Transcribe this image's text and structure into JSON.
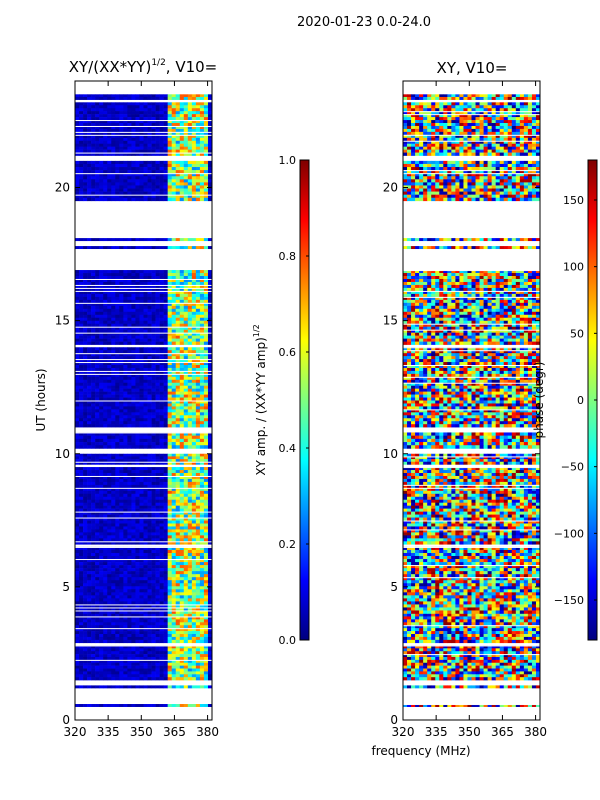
{
  "figure": {
    "suptitle": "2020-01-23 0.0-24.0",
    "xlabel": "frequency (MHz)"
  },
  "colors": {
    "cmap": [
      "#00007f",
      "#0000ff",
      "#007fff",
      "#00ffff",
      "#7fff7f",
      "#ffff00",
      "#ff7f00",
      "#ff0000",
      "#7f0000"
    ],
    "background": "#ffffff",
    "axis": "#000000"
  },
  "chart_data": [
    {
      "type": "heatmap",
      "title_main": "XY/(XX*YY)",
      "title_sup": "1/2",
      "title_tail": ", V10=",
      "ylabel": "UT (hours)",
      "xlim": [
        320,
        382
      ],
      "ylim": [
        0,
        24
      ],
      "xticks": [
        320,
        335,
        350,
        365,
        380
      ],
      "yticks": [
        0,
        5,
        10,
        15,
        20
      ],
      "x_tick_labels": [
        "320",
        "335",
        "350",
        "365",
        "380"
      ],
      "y_tick_labels": [
        "0",
        "5",
        "10",
        "15",
        "20"
      ],
      "colorbar": {
        "label_main": "XY amp. / (XX*YY amp)",
        "label_sup": "1/2",
        "range": [
          0.0,
          1.0
        ],
        "ticks": [
          0.0,
          0.2,
          0.4,
          0.6,
          0.8,
          1.0
        ],
        "tick_labels": [
          "0.0",
          "0.2",
          "0.4",
          "0.6",
          "0.8",
          "1.0"
        ]
      },
      "data_ranges_hours": [
        [
          0.5,
          0.6
        ],
        [
          1.2,
          1.3
        ],
        [
          1.5,
          2.8
        ],
        [
          2.9,
          4.0
        ],
        [
          4.0,
          6.5
        ],
        [
          6.6,
          9.5
        ],
        [
          9.6,
          10.0
        ],
        [
          10.2,
          10.8
        ],
        [
          11.0,
          14.0
        ],
        [
          14.1,
          16.9
        ],
        [
          17.7,
          17.8
        ],
        [
          18.0,
          18.1
        ],
        [
          19.5,
          21.0
        ],
        [
          21.2,
          23.2
        ],
        [
          23.3,
          23.5
        ]
      ]
    },
    {
      "type": "heatmap",
      "title": "XY, V10=",
      "xlim": [
        320,
        382
      ],
      "ylim": [
        0,
        24
      ],
      "xticks": [
        320,
        335,
        350,
        365,
        380
      ],
      "yticks": [
        0,
        5,
        10,
        15,
        20
      ],
      "x_tick_labels": [
        "320",
        "335",
        "350",
        "365",
        "380"
      ],
      "y_tick_labels": [
        "0",
        "5",
        "10",
        "15",
        "20"
      ],
      "colorbar": {
        "label": "phase (degr)",
        "range": [
          -180,
          180
        ],
        "ticks": [
          -150,
          -100,
          -50,
          0,
          50,
          100,
          150
        ],
        "tick_labels": [
          "−150",
          "−100",
          "−50",
          "0",
          "50",
          "100",
          "150"
        ]
      },
      "data_ranges_hours": [
        [
          0.5,
          0.6
        ],
        [
          1.2,
          1.3
        ],
        [
          1.5,
          2.8
        ],
        [
          2.9,
          4.0
        ],
        [
          4.0,
          6.5
        ],
        [
          6.6,
          9.5
        ],
        [
          9.6,
          10.0
        ],
        [
          10.2,
          10.8
        ],
        [
          11.0,
          14.0
        ],
        [
          14.1,
          16.9
        ],
        [
          17.7,
          17.8
        ],
        [
          18.0,
          18.1
        ],
        [
          19.5,
          21.0
        ],
        [
          21.2,
          23.2
        ],
        [
          23.3,
          23.5
        ]
      ]
    }
  ]
}
